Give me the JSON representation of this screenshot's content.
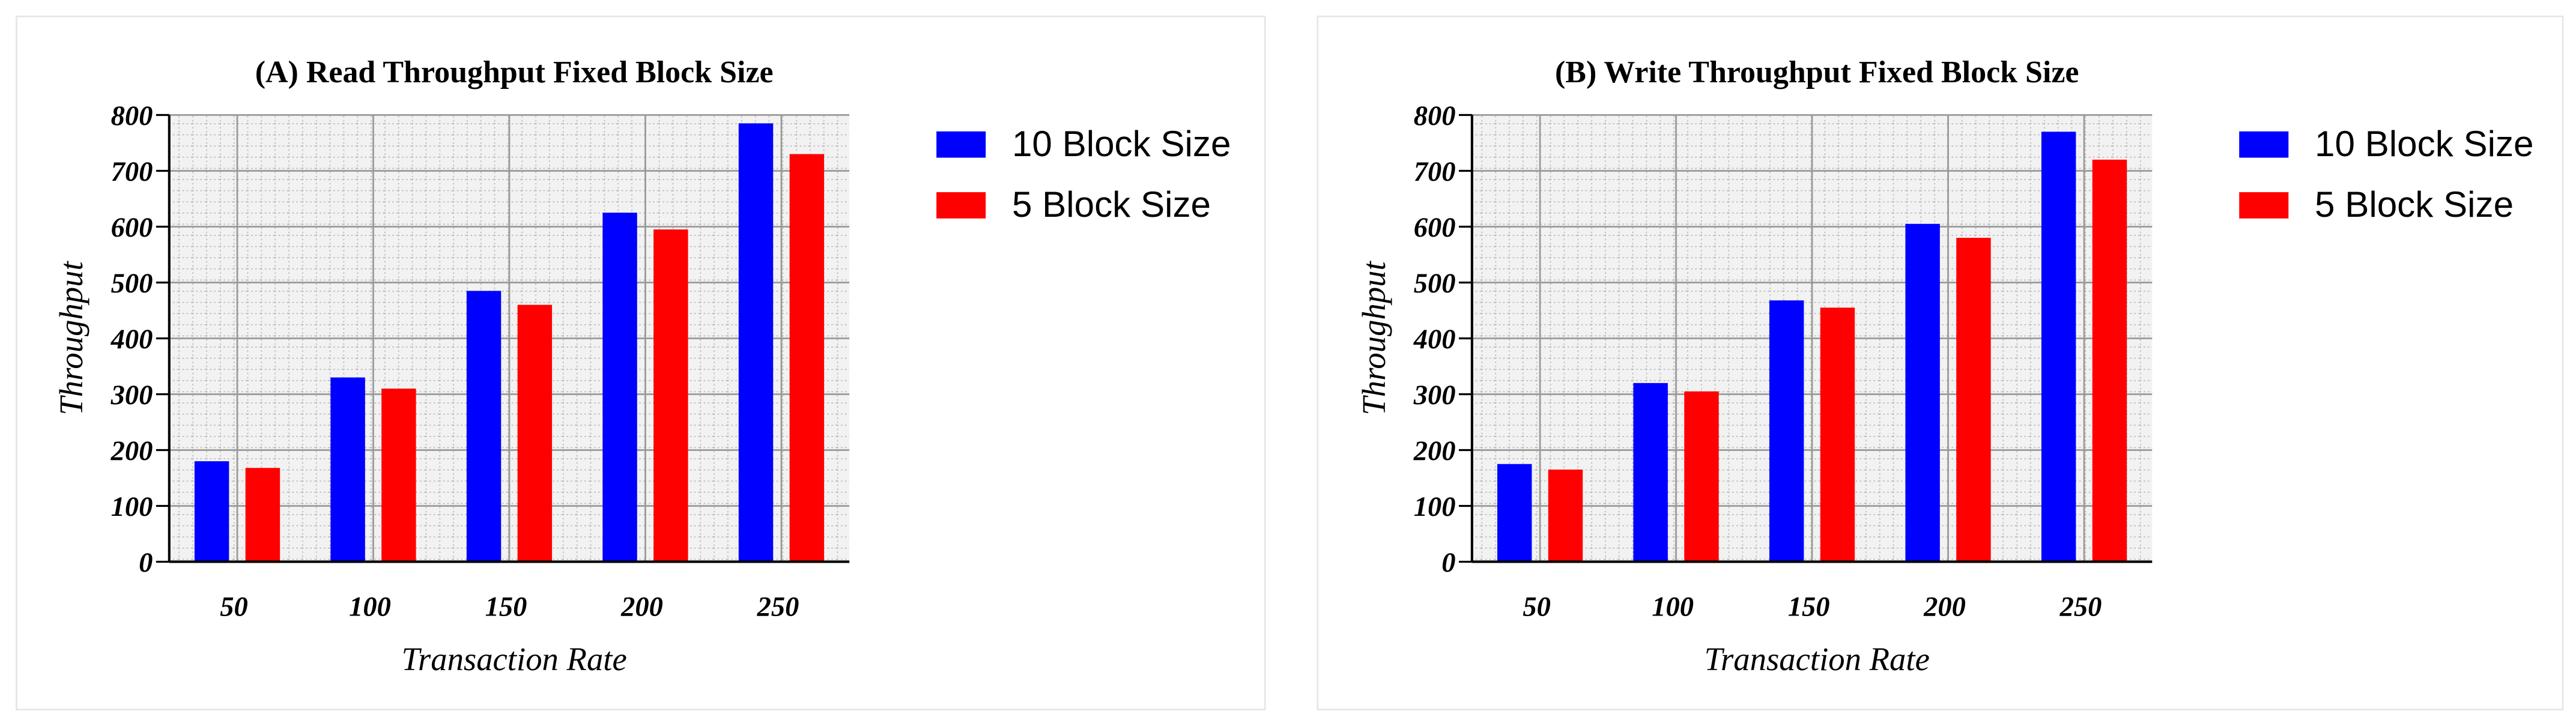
{
  "chart_data": [
    {
      "type": "bar",
      "title": "(A) Read Throughput Fixed Block Size",
      "x_label": "Transaction Rate",
      "y_label": "Throughput",
      "categories": [
        "50",
        "100",
        "150",
        "200",
        "250"
      ],
      "series": [
        {
          "name": "10 Block Size",
          "color": "#0000ff",
          "values": [
            180,
            330,
            485,
            625,
            785
          ]
        },
        {
          "name": "5 Block Size",
          "color": "#ff0000",
          "values": [
            168,
            310,
            460,
            595,
            730
          ]
        }
      ],
      "ylim": [
        0,
        800
      ],
      "yticks": [
        0,
        100,
        200,
        300,
        400,
        500,
        600,
        700,
        800
      ],
      "grid": true,
      "legend": "outside right"
    },
    {
      "type": "bar",
      "title": "(B) Write Throughput Fixed Block Size",
      "x_label": "Transaction Rate",
      "y_label": "Throughput",
      "categories": [
        "50",
        "100",
        "150",
        "200",
        "250"
      ],
      "series": [
        {
          "name": "10 Block Size",
          "color": "#0000ff",
          "values": [
            175,
            320,
            468,
            605,
            770
          ]
        },
        {
          "name": "5 Block Size",
          "color": "#ff0000",
          "values": [
            165,
            305,
            455,
            580,
            720
          ]
        }
      ],
      "ylim": [
        0,
        800
      ],
      "yticks": [
        0,
        100,
        200,
        300,
        400,
        500,
        600,
        700,
        800
      ],
      "grid": true,
      "legend": "outside right"
    }
  ]
}
